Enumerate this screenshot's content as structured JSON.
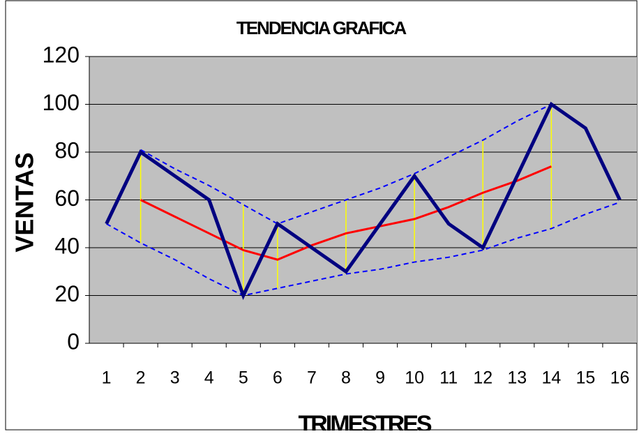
{
  "chart_data": {
    "type": "line",
    "title": "TENDENCIA GRAFICA",
    "x_label": "TRIMESTRES",
    "y_label": "VENTAS",
    "categories": [
      "1",
      "2",
      "3",
      "4",
      "5",
      "6",
      "7",
      "8",
      "9",
      "10",
      "11",
      "12",
      "13",
      "14",
      "15",
      "16"
    ],
    "series": [
      {
        "color": "#000080",
        "style": "solid",
        "values": [
          50,
          80,
          70,
          60,
          20,
          50,
          40,
          30,
          50,
          70,
          50,
          40,
          70,
          100,
          90,
          60
        ]
      },
      {
        "color": "#ff0000",
        "style": "solid",
        "values": [
          null,
          60,
          53,
          46,
          39,
          35,
          41,
          46,
          49,
          52,
          57,
          63,
          68,
          74,
          null,
          null
        ]
      },
      {
        "color": "#0000ff",
        "style": "dashed",
        "values": [
          null,
          81,
          73,
          66,
          58,
          50,
          55,
          60,
          65,
          71,
          78,
          85,
          93,
          100,
          null,
          null
        ]
      },
      {
        "color": "#0000ff",
        "style": "dashed",
        "values": [
          50,
          42,
          35,
          27,
          20,
          23,
          26,
          29,
          31,
          34,
          36,
          39,
          44,
          48,
          54,
          59
        ]
      }
    ],
    "hi_lo_color": "#ffff00",
    "hi_lo_categories": [
      "2",
      "5",
      "6",
      "8",
      "10",
      "12",
      "14"
    ],
    "plot_color": "#c0c0c0",
    "ylim": [
      0,
      120
    ],
    "yticks": [
      0,
      20,
      40,
      60,
      80,
      100,
      120
    ],
    "grid": true
  }
}
